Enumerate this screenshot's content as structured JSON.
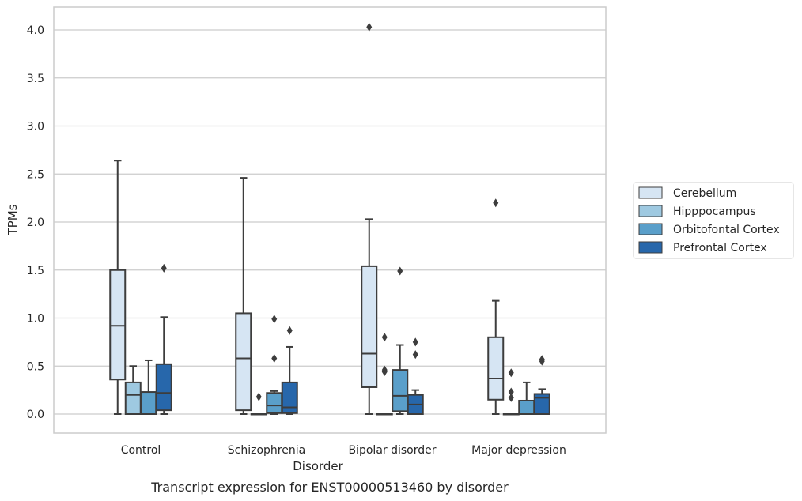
{
  "caption": "Transcript expression for ENST00000513460 by disorder",
  "chart_data": {
    "type": "box",
    "title": "",
    "xlabel": "Disorder",
    "ylabel": "TPMs",
    "ylim": [
      -0.2,
      4.23
    ],
    "yticks": [
      0.0,
      0.5,
      1.0,
      1.5,
      2.0,
      2.5,
      3.0,
      3.5,
      4.0
    ],
    "ytick_labels": [
      "0.0",
      "0.5",
      "1.0",
      "1.5",
      "2.0",
      "2.5",
      "3.0",
      "3.5",
      "4.0"
    ],
    "grid": "horizontal",
    "legend_position": "right",
    "categories": [
      "Control",
      "Schizophrenia",
      "Bipolar disorder",
      "Major depression"
    ],
    "series": [
      {
        "name": "Cerebellum",
        "color": "#d6e5f3",
        "boxes": [
          {
            "q1": 0.36,
            "median": 0.92,
            "q3": 1.5,
            "whislo": 0.0,
            "whishi": 2.64,
            "fliers": []
          },
          {
            "q1": 0.04,
            "median": 0.58,
            "q3": 1.05,
            "whislo": 0.0,
            "whishi": 2.46,
            "fliers": []
          },
          {
            "q1": 0.28,
            "median": 0.63,
            "q3": 1.54,
            "whislo": 0.0,
            "whishi": 2.03,
            "fliers": [
              4.03
            ]
          },
          {
            "q1": 0.15,
            "median": 0.37,
            "q3": 0.8,
            "whislo": 0.0,
            "whishi": 1.18,
            "fliers": [
              2.2
            ]
          }
        ]
      },
      {
        "name": "Hipppocampus",
        "color": "#9ec9e1",
        "boxes": [
          {
            "q1": 0.0,
            "median": 0.2,
            "q3": 0.33,
            "whislo": 0.0,
            "whishi": 0.5,
            "fliers": []
          },
          {
            "q1": 0.0,
            "median": 0.0,
            "q3": 0.0,
            "whislo": 0.0,
            "whishi": 0.0,
            "fliers": [
              0.18
            ]
          },
          {
            "q1": 0.0,
            "median": 0.0,
            "q3": 0.0,
            "whislo": 0.0,
            "whishi": 0.0,
            "fliers": [
              0.8,
              0.46,
              0.44
            ]
          },
          {
            "q1": 0.0,
            "median": 0.0,
            "q3": 0.0,
            "whislo": 0.0,
            "whishi": 0.0,
            "fliers": [
              0.43,
              0.23,
              0.17
            ]
          }
        ]
      },
      {
        "name": "Orbitofontal Cortex",
        "color": "#5a9fca",
        "boxes": [
          {
            "q1": 0.0,
            "median": 0.0,
            "q3": 0.23,
            "whislo": 0.0,
            "whishi": 0.56,
            "fliers": []
          },
          {
            "q1": 0.01,
            "median": 0.09,
            "q3": 0.22,
            "whislo": 0.0,
            "whishi": 0.24,
            "fliers": [
              0.99,
              0.58
            ]
          },
          {
            "q1": 0.03,
            "median": 0.19,
            "q3": 0.46,
            "whislo": 0.0,
            "whishi": 0.72,
            "fliers": [
              1.49
            ]
          },
          {
            "q1": 0.0,
            "median": 0.0,
            "q3": 0.14,
            "whislo": 0.0,
            "whishi": 0.33,
            "fliers": []
          }
        ]
      },
      {
        "name": "Prefrontal Cortex",
        "color": "#2767ab",
        "boxes": [
          {
            "q1": 0.04,
            "median": 0.22,
            "q3": 0.52,
            "whislo": 0.0,
            "whishi": 1.01,
            "fliers": [
              1.52
            ]
          },
          {
            "q1": 0.01,
            "median": 0.07,
            "q3": 0.33,
            "whislo": 0.0,
            "whishi": 0.7,
            "fliers": [
              0.87
            ]
          },
          {
            "q1": 0.0,
            "median": 0.1,
            "q3": 0.2,
            "whislo": 0.0,
            "whishi": 0.25,
            "fliers": [
              0.75,
              0.62
            ]
          },
          {
            "q1": 0.0,
            "median": 0.17,
            "q3": 0.21,
            "whislo": 0.0,
            "whishi": 0.26,
            "fliers": [
              0.57,
              0.55
            ]
          }
        ]
      }
    ]
  }
}
